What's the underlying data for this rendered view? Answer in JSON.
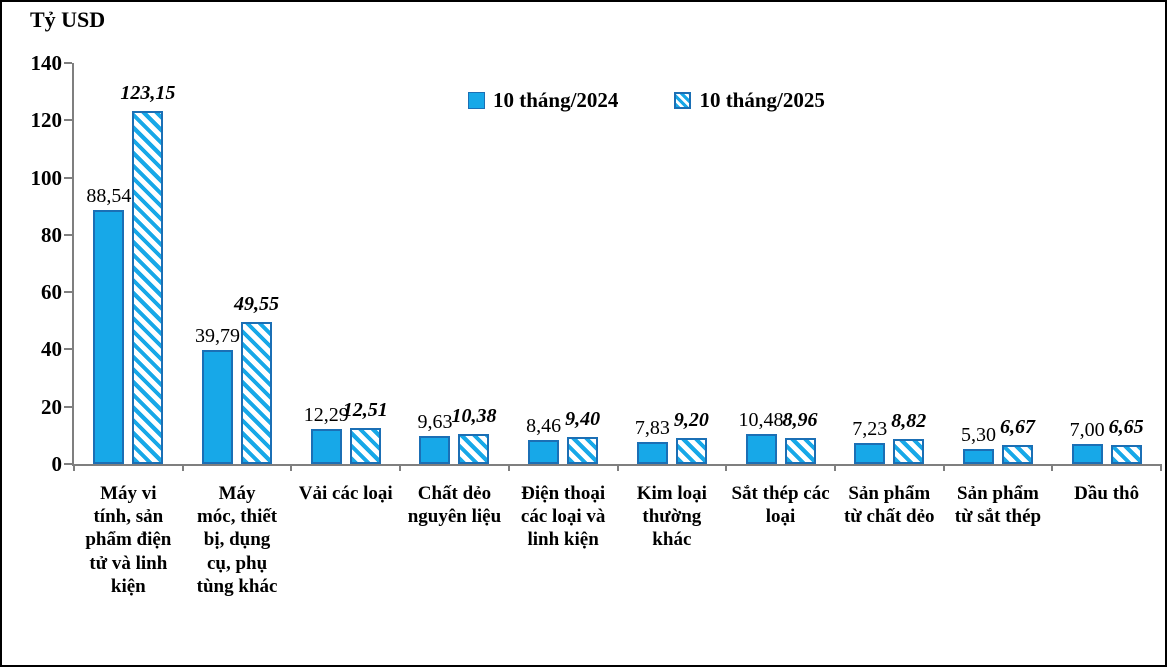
{
  "title": "Tỷ USD",
  "legend": {
    "items": [
      {
        "label": "10 tháng/2024",
        "swatch": "solid-square-icon"
      },
      {
        "label": "10 tháng/2025",
        "swatch": "hatched-square-icon"
      }
    ]
  },
  "colors": {
    "bar_fill": "#17A8E8",
    "bar_border": "#1B6FB5",
    "axis": "#7F7F7F",
    "text": "#000000",
    "background": "#FFFFFF"
  },
  "chart_data": {
    "type": "bar",
    "title": "Tỷ USD",
    "ylabel": "Tỷ USD",
    "xlabel": "",
    "ylim": [
      0,
      140
    ],
    "yticks": [
      0,
      20,
      40,
      60,
      80,
      100,
      120,
      140
    ],
    "grid": false,
    "legend_position": "top-center",
    "decimal_separator": ",",
    "categories": [
      "Máy vi\ntính, sản\nphẩm điện\ntử và linh\nkiện",
      "Máy\nmóc, thiết\nbị, dụng\ncụ, phụ\ntùng khác",
      "Vải các loại",
      "Chất dẻo\nnguyên liệu",
      "Điện thoại\ncác loại và\nlinh kiện",
      "Kim loại\nthường\nkhác",
      "Sắt thép các\nloại",
      "Sản phẩm\ntừ chất dẻo",
      "Sản phẩm\ntừ sắt thép",
      "Dầu thô"
    ],
    "series": [
      {
        "name": "10 tháng/2024",
        "style": "solid",
        "values": [
          88.54,
          39.79,
          12.29,
          9.63,
          8.46,
          7.83,
          10.48,
          7.23,
          5.3,
          7.0
        ],
        "labels": [
          "88,54",
          "39,79",
          "12,29",
          "9,63",
          "8,46",
          "7,83",
          "10,48",
          "7,23",
          "5,30",
          "7,00"
        ]
      },
      {
        "name": "10 tháng/2025",
        "style": "hatched",
        "values": [
          123.15,
          49.55,
          12.51,
          10.38,
          9.4,
          9.2,
          8.96,
          8.82,
          6.67,
          6.65
        ],
        "labels": [
          "123,15",
          "49,55",
          "12,51",
          "10,38",
          "9,40",
          "9,20",
          "8,96",
          "8,82",
          "6,67",
          "6,65"
        ]
      }
    ]
  }
}
